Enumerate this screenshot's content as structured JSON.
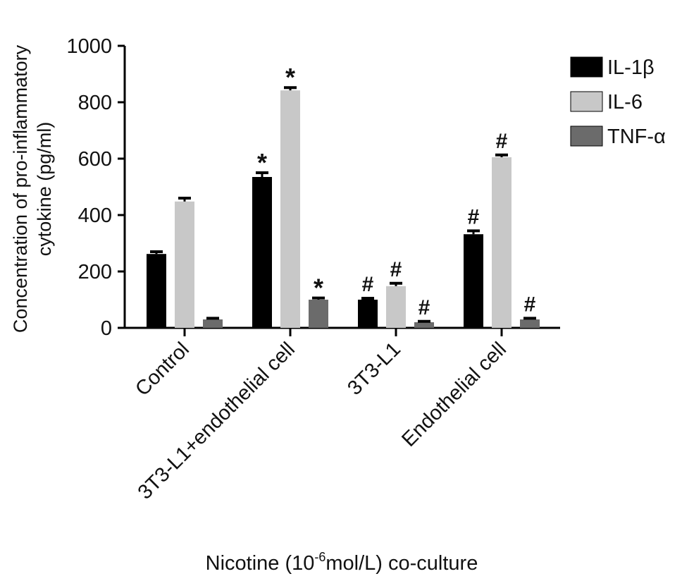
{
  "chart_data": {
    "type": "bar",
    "ylabel_line1": "Concentration of pro-inflammatory",
    "ylabel_line2": "cytokine (pg/ml)",
    "xlabel_main": "Nicotine (10",
    "xlabel_sup": "-6",
    "xlabel_end": "mol/L) co-culture",
    "ylim": [
      0,
      1000
    ],
    "yticks": [
      0,
      200,
      400,
      600,
      800,
      1000
    ],
    "categories": [
      "Control",
      "3T3-L1+endothelial cell",
      "3T3-L1",
      "Endothelial cell"
    ],
    "series": [
      {
        "name": "IL-1β",
        "color": "#000000",
        "values": [
          262,
          535,
          100,
          332
        ],
        "errors": [
          8,
          15,
          5,
          12
        ],
        "marks": [
          "",
          "*",
          "#",
          "#"
        ]
      },
      {
        "name": "IL-6",
        "color": "#c8c8c8",
        "values": [
          448,
          842,
          148,
          605
        ],
        "errors": [
          12,
          10,
          10,
          8
        ],
        "marks": [
          "",
          "*",
          "#",
          "#"
        ]
      },
      {
        "name": "TNF-α",
        "color": "#6b6b6b",
        "values": [
          30,
          100,
          20,
          30
        ],
        "errors": [
          4,
          6,
          3,
          4
        ],
        "marks": [
          "",
          "*",
          "#",
          "#"
        ]
      }
    ],
    "legend_position": "top-right",
    "grid": false
  }
}
